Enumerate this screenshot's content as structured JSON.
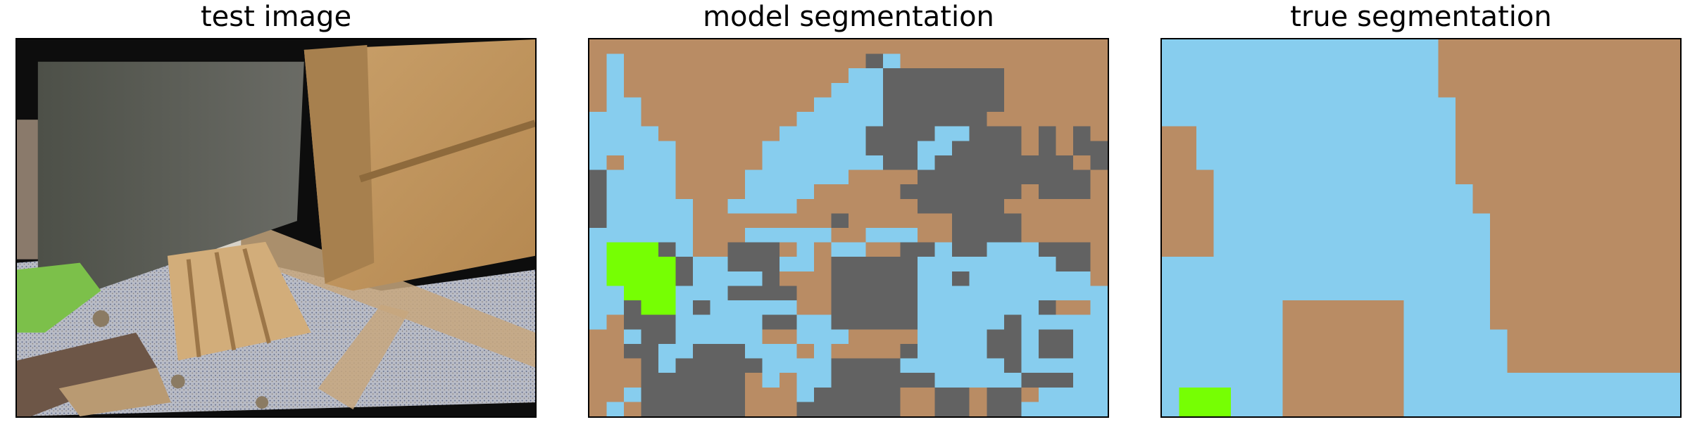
{
  "titles": {
    "test": "test image",
    "model": "model segmentation",
    "truth": "true segmentation"
  },
  "colors": {
    "wood": "#B98C64",
    "sky": "#87CDEE",
    "gray": "#626262",
    "green": "#76FF03"
  },
  "legend": {
    "0": "wood",
    "1": "sky",
    "2": "gray",
    "3": "green"
  },
  "segmentation_model": [
    "000000000000000000000000000000",
    "010000000000000021000000000000",
    "010000000000000112222222000000",
    "010000000000001112222222000000",
    "011000000000011112222222000000",
    "111000000000111112222220000000",
    "111100000001111122221122202020",
    "111110000011111122211222202022",
    "101110000011111112212222222202",
    "211110000111111000022222222220",
    "211110000111100000222222202220",
    "211111001111000000022222000000",
    "211111000000002000000222200000",
    "111111000111110011100222200000",
    "133321002220101100221221112220",
    "133332112221102222211111111220",
    "133332111120002222211211111110",
    "113331112222002222211111111111",
    "112331211111002222211111112001",
    "102221111122112222211111211111",
    "001221111100111000011112212211",
    "002211222111010000211112212211",
    "000212222211112222111111211111",
    "000222222010112222221111122211",
    "001222222000122222002202201111",
    "010222222000222222002202211111"
  ],
  "segmentation_truth": [
    "111111111111111100000000000000",
    "111111111111111100000000000000",
    "111111111111111100000000000000",
    "111111111111111100000000000000",
    "111111111111111110000000000000",
    "111111111111111110000000000000",
    "001111111111111110000000000000",
    "001111111111111110000000000000",
    "001111111111111110000000000000",
    "000111111111111110000000000000",
    "000111111111111111000000000000",
    "000111111111111111000000000000",
    "000111111111111111100000000000",
    "000111111111111111100000000000",
    "000111111111111111100000000000",
    "111111111111111111100000000000",
    "111111111111111111100000000000",
    "111111111111111111100000000000",
    "111111100000001111100000000000",
    "111111100000001111100000000000",
    "111111100000001111110000000000",
    "111111100000001111110000000000",
    "111111100000001111110000000000",
    "111111100000001111111111111111",
    "133311100000001111111111111111",
    "133311100000001111111111111111"
  ]
}
